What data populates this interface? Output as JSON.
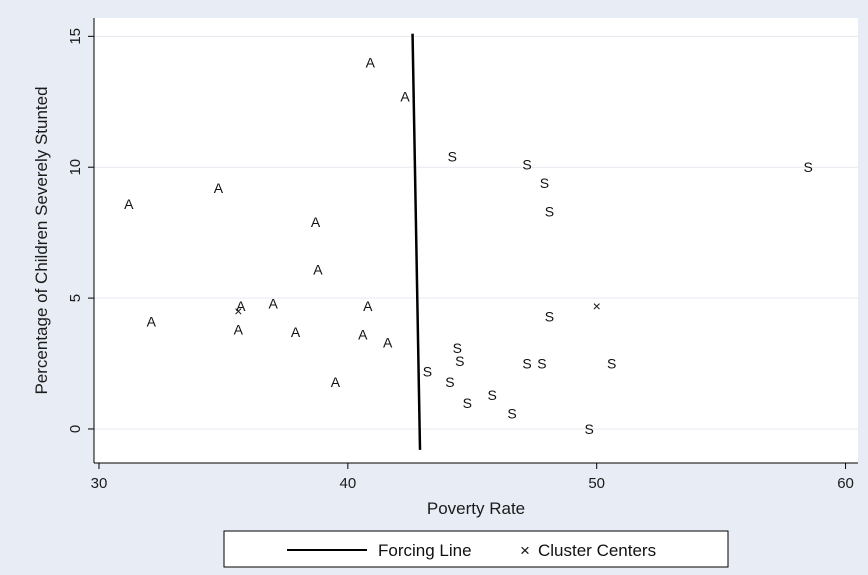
{
  "chart_data": {
    "type": "scatter",
    "xlabel": "Poverty Rate",
    "ylabel": "Percentage of Children Severely Stunted",
    "xlim": [
      29.8,
      60.5
    ],
    "ylim": [
      -1.3,
      15.7
    ],
    "xticks": [
      30,
      40,
      50,
      60
    ],
    "yticks": [
      0,
      5,
      10,
      15
    ],
    "grid": "horizontal",
    "series": [
      {
        "marker": "A",
        "points": [
          {
            "x": 31.2,
            "y": 8.6
          },
          {
            "x": 32.1,
            "y": 4.1
          },
          {
            "x": 34.8,
            "y": 9.2
          },
          {
            "x": 35.7,
            "y": 4.7
          },
          {
            "x": 35.6,
            "y": 3.8
          },
          {
            "x": 37.0,
            "y": 4.8
          },
          {
            "x": 37.9,
            "y": 3.7
          },
          {
            "x": 38.7,
            "y": 7.9
          },
          {
            "x": 38.8,
            "y": 6.1
          },
          {
            "x": 39.5,
            "y": 1.8
          },
          {
            "x": 40.6,
            "y": 3.6
          },
          {
            "x": 40.8,
            "y": 4.7
          },
          {
            "x": 40.9,
            "y": 14.0
          },
          {
            "x": 41.6,
            "y": 3.3
          },
          {
            "x": 42.3,
            "y": 12.7
          }
        ]
      },
      {
        "marker": "S",
        "points": [
          {
            "x": 43.2,
            "y": 2.2
          },
          {
            "x": 44.1,
            "y": 1.8
          },
          {
            "x": 44.2,
            "y": 10.4
          },
          {
            "x": 44.4,
            "y": 3.1
          },
          {
            "x": 44.5,
            "y": 2.6
          },
          {
            "x": 44.8,
            "y": 1.0
          },
          {
            "x": 45.8,
            "y": 1.3
          },
          {
            "x": 46.6,
            "y": 0.6
          },
          {
            "x": 47.2,
            "y": 2.5
          },
          {
            "x": 47.2,
            "y": 10.1
          },
          {
            "x": 47.8,
            "y": 2.5
          },
          {
            "x": 47.9,
            "y": 9.4
          },
          {
            "x": 48.1,
            "y": 8.3
          },
          {
            "x": 48.1,
            "y": 4.3
          },
          {
            "x": 49.7,
            "y": 0.0
          },
          {
            "x": 50.6,
            "y": 2.5
          },
          {
            "x": 58.5,
            "y": 10.0
          }
        ]
      }
    ],
    "forcing_line": {
      "name": "Forcing Line",
      "x1": 42.6,
      "y1": 15.1,
      "x2": 42.9,
      "y2": -0.8
    },
    "cluster_centers": {
      "name": "Cluster Centers",
      "marker": "×",
      "points": [
        {
          "x": 35.6,
          "y": 4.5
        },
        {
          "x": 50.0,
          "y": 4.7
        }
      ]
    },
    "legend": {
      "placement": "bottom",
      "items": [
        "Forcing Line",
        "Cluster Centers"
      ]
    },
    "colors": {
      "background": "#e8edf5",
      "plot_bg": "#ffffff",
      "grid": "#e5e9f0",
      "ink": "#111111"
    }
  }
}
